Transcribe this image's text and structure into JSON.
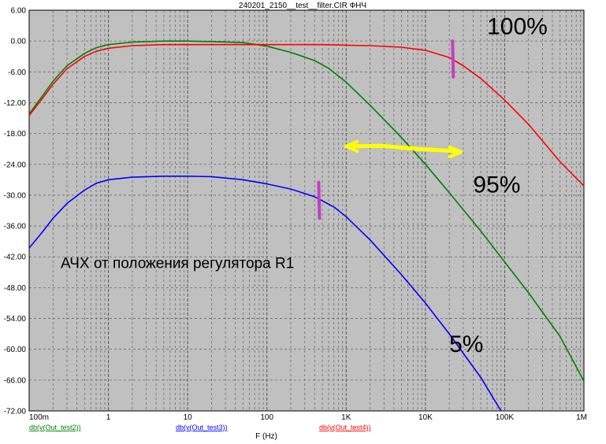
{
  "window_title": "240201_2150__test__filter.CIR ФНЧ",
  "chart_data": {
    "type": "line",
    "title": "240201_2150__test__filter.CIR ФНЧ",
    "xlabel": "F (Hz)",
    "ylabel": "",
    "xscale": "log",
    "xlim": [
      0.1,
      1000000
    ],
    "ylim": [
      -72,
      6
    ],
    "grid": true,
    "background": "#c0c0c0",
    "x_ticks": [
      {
        "value": 0.1,
        "label": "100m"
      },
      {
        "value": 1,
        "label": "1"
      },
      {
        "value": 10,
        "label": "10"
      },
      {
        "value": 100,
        "label": "100"
      },
      {
        "value": 1000,
        "label": "1K"
      },
      {
        "value": 10000,
        "label": "10K"
      },
      {
        "value": 100000,
        "label": "100K"
      },
      {
        "value": 1000000,
        "label": "1M"
      }
    ],
    "y_ticks": [
      {
        "value": 6,
        "label": "6.00"
      },
      {
        "value": 0,
        "label": "0.00"
      },
      {
        "value": -6,
        "label": "-6.00"
      },
      {
        "value": -12,
        "label": "-12.00"
      },
      {
        "value": -18,
        "label": "-18.00"
      },
      {
        "value": -24,
        "label": "-24.00"
      },
      {
        "value": -30,
        "label": "-30.00"
      },
      {
        "value": -36,
        "label": "-36.00"
      },
      {
        "value": -42,
        "label": "-42.00"
      },
      {
        "value": -48,
        "label": "-48.00"
      },
      {
        "value": -54,
        "label": "-54.00"
      },
      {
        "value": -60,
        "label": "-60.00"
      },
      {
        "value": -66,
        "label": "-66.00"
      },
      {
        "value": -72,
        "label": "-72.00"
      }
    ],
    "series": [
      {
        "name": "db(v(Out_test2))",
        "color": "#008000",
        "points": [
          [
            0.1,
            -14.2
          ],
          [
            0.15,
            -10.5
          ],
          [
            0.2,
            -7.8
          ],
          [
            0.3,
            -4.8
          ],
          [
            0.5,
            -2.4
          ],
          [
            0.7,
            -1.3
          ],
          [
            1,
            -0.7
          ],
          [
            2,
            -0.2
          ],
          [
            5,
            0
          ],
          [
            10,
            0
          ],
          [
            20,
            -0.1
          ],
          [
            50,
            -0.3
          ],
          [
            100,
            -1.0
          ],
          [
            200,
            -2.2
          ],
          [
            400,
            -3.8
          ],
          [
            600,
            -5.3
          ],
          [
            1000,
            -8.0
          ],
          [
            2000,
            -12.5
          ],
          [
            5000,
            -18.8
          ],
          [
            10000,
            -24.0
          ],
          [
            20000,
            -29.5
          ],
          [
            50000,
            -37.0
          ],
          [
            100000,
            -43.0
          ],
          [
            200000,
            -49.0
          ],
          [
            500000,
            -57.5
          ],
          [
            1000000,
            -66.2
          ]
        ]
      },
      {
        "name": "db(v(Out_test3))",
        "color": "#0000ff",
        "points": [
          [
            0.1,
            -40.3
          ],
          [
            0.15,
            -37.0
          ],
          [
            0.2,
            -34.5
          ],
          [
            0.3,
            -31.6
          ],
          [
            0.5,
            -29.0
          ],
          [
            0.7,
            -27.7
          ],
          [
            1,
            -27.0
          ],
          [
            2,
            -26.5
          ],
          [
            5,
            -26.3
          ],
          [
            10,
            -26.3
          ],
          [
            20,
            -26.4
          ],
          [
            50,
            -27.0
          ],
          [
            100,
            -27.8
          ],
          [
            200,
            -28.8
          ],
          [
            400,
            -30.3
          ],
          [
            700,
            -32.3
          ],
          [
            1000,
            -34.2
          ],
          [
            2000,
            -38.7
          ],
          [
            5000,
            -45.5
          ],
          [
            10000,
            -51.0
          ],
          [
            20000,
            -57.0
          ],
          [
            50000,
            -65.5
          ],
          [
            75000,
            -70.0
          ],
          [
            90000,
            -72.0
          ]
        ]
      },
      {
        "name": "db(v(Out_test4))",
        "color": "#ff0000",
        "points": [
          [
            0.1,
            -14.5
          ],
          [
            0.15,
            -11.0
          ],
          [
            0.2,
            -8.4
          ],
          [
            0.3,
            -5.4
          ],
          [
            0.5,
            -3.0
          ],
          [
            0.7,
            -2.0
          ],
          [
            1,
            -1.4
          ],
          [
            2,
            -0.9
          ],
          [
            5,
            -0.7
          ],
          [
            10,
            -0.7
          ],
          [
            20,
            -0.7
          ],
          [
            50,
            -0.7
          ],
          [
            100,
            -0.7
          ],
          [
            500,
            -0.7
          ],
          [
            1000,
            -0.8
          ],
          [
            2000,
            -0.9
          ],
          [
            5000,
            -1.2
          ],
          [
            10000,
            -1.8
          ],
          [
            20000,
            -3.2
          ],
          [
            30000,
            -4.8
          ],
          [
            50000,
            -7.3
          ],
          [
            100000,
            -11.5
          ],
          [
            200000,
            -16.2
          ],
          [
            500000,
            -23.5
          ],
          [
            1000000,
            -28.2
          ]
        ]
      }
    ],
    "annotations": [
      {
        "text": "100%",
        "x": 60000,
        "y": 1.3,
        "style": "big"
      },
      {
        "text": "95%",
        "x": 40000,
        "y": -29.5,
        "style": "big"
      },
      {
        "text": "5%",
        "x": 20000,
        "y": -60.5,
        "style": "big"
      },
      {
        "text": "АЧХ от положения регулятора R1",
        "x": 0.25,
        "y": -44.2,
        "style": "text"
      }
    ],
    "markers": [
      {
        "x": 22000,
        "y1": 0,
        "y2": -7,
        "color": "#c040c0"
      },
      {
        "x": 450,
        "y1": -27.5,
        "y2": -34.5,
        "color": "#c040c0"
      }
    ],
    "arrow": {
      "color": "#ffff00",
      "points": [
        [
          1000,
          -20.5
        ],
        [
          2800,
          -20.4
        ],
        [
          8000,
          -21.0
        ],
        [
          22000,
          -21.4
        ],
        [
          28000,
          -21.6
        ]
      ]
    }
  }
}
